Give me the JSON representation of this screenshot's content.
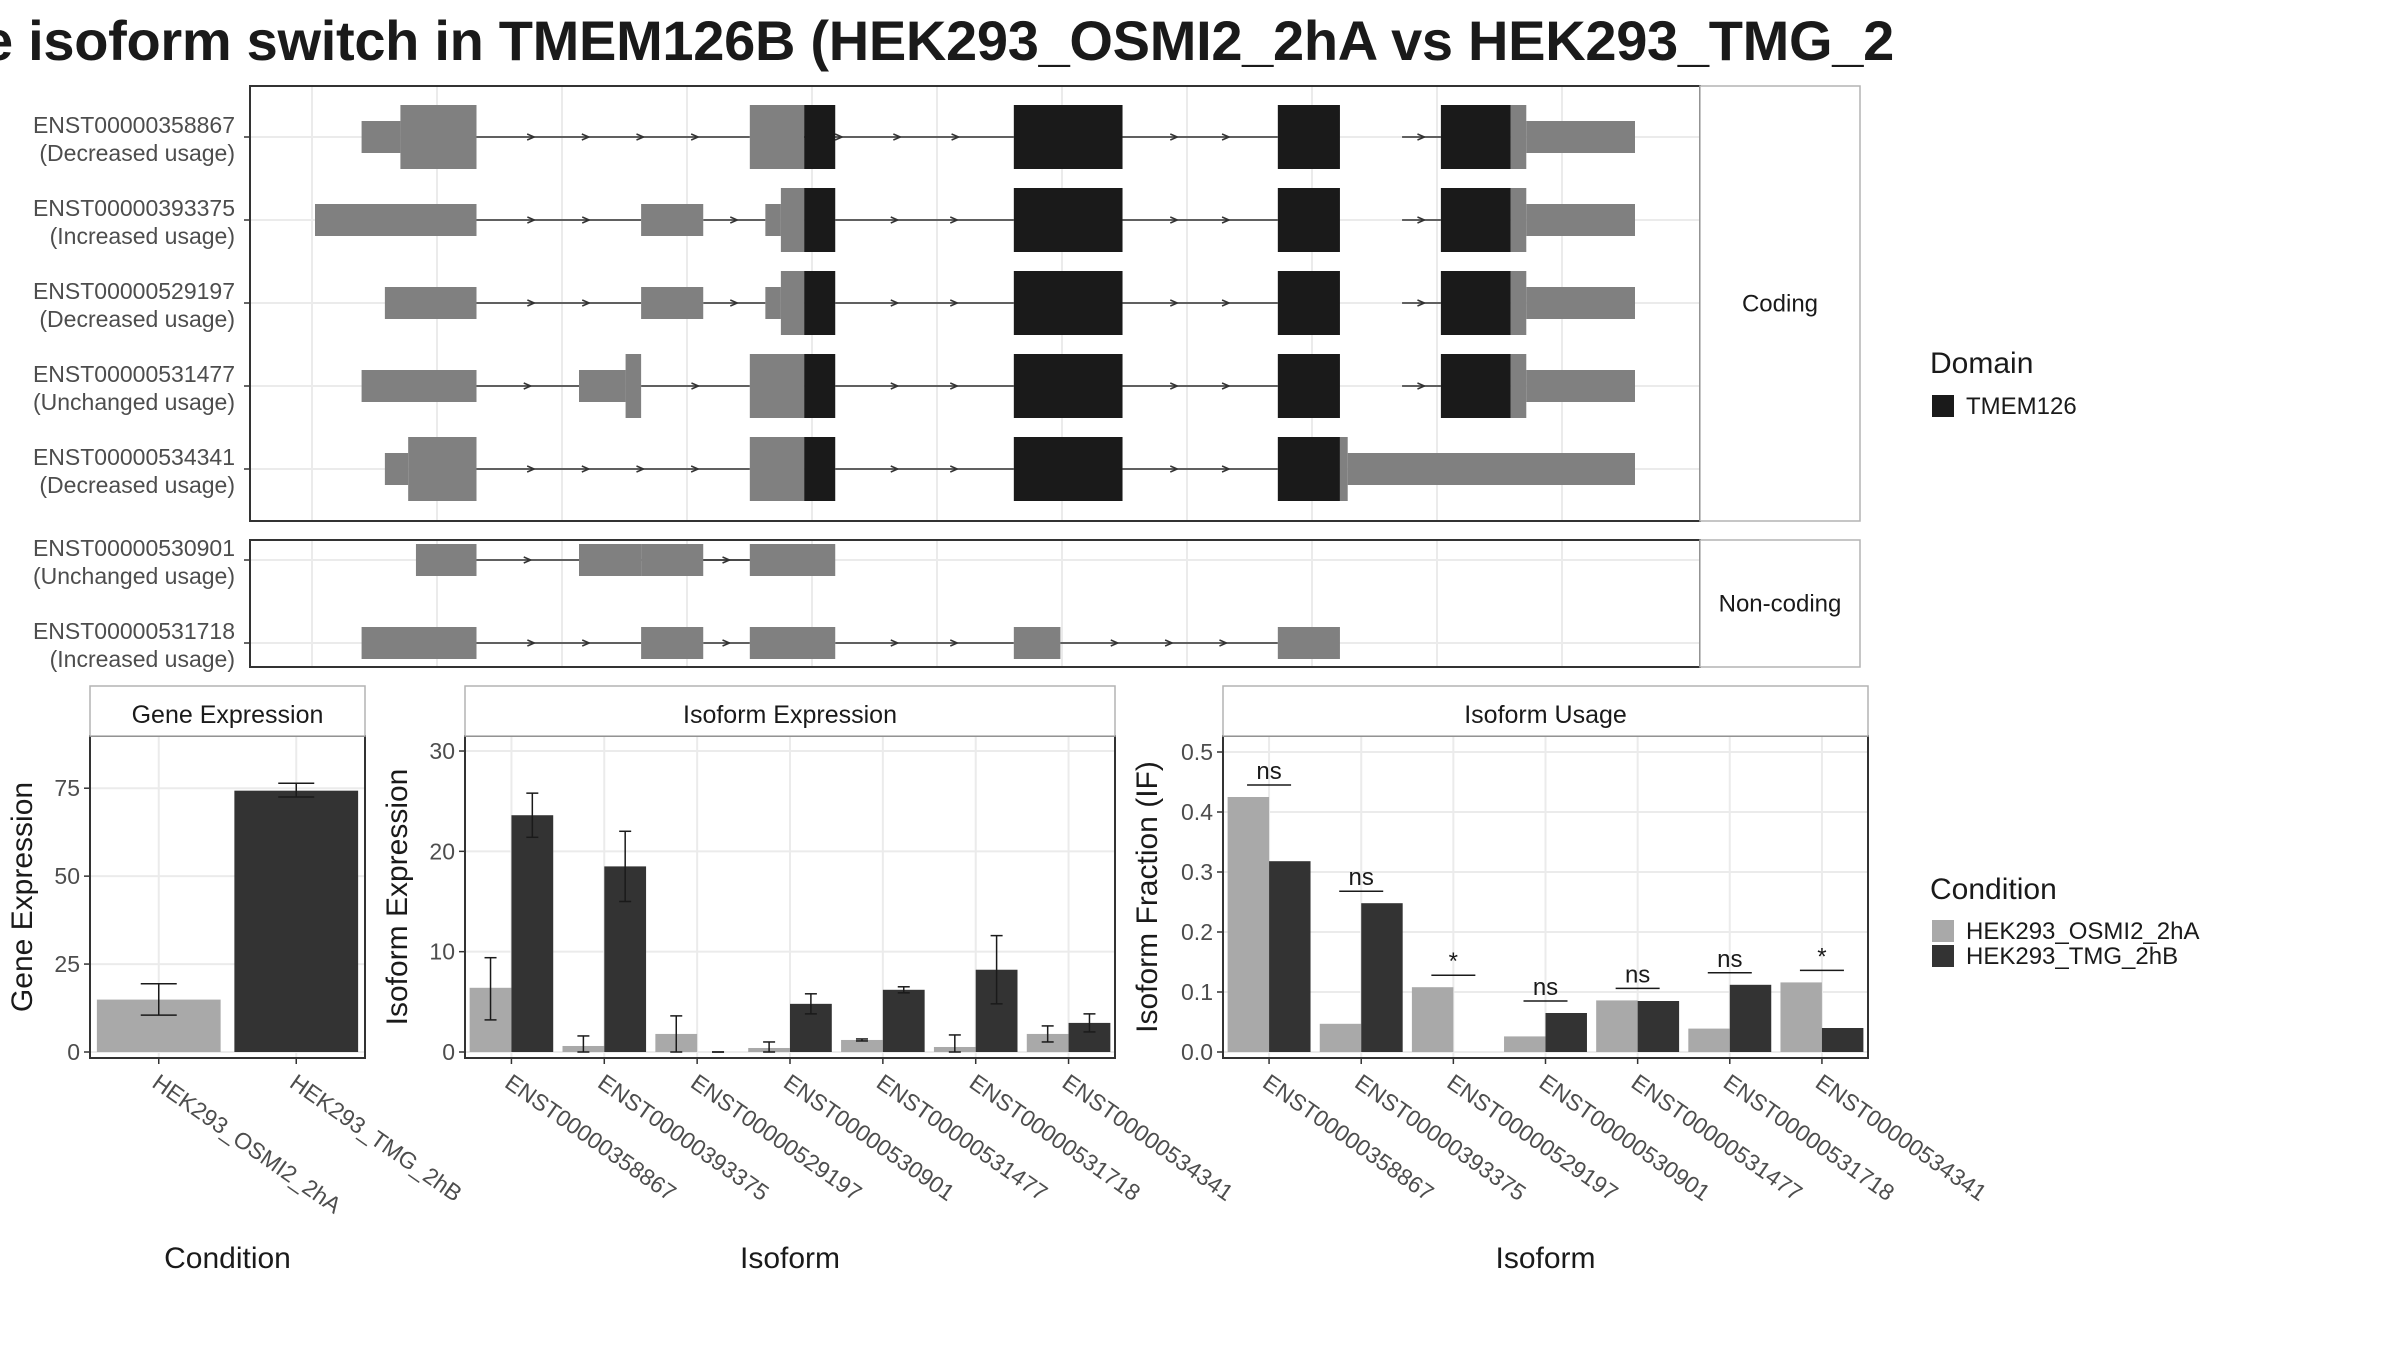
{
  "page": {
    "title": "e isoform switch in TMEM126B (HEK293_OSMI2_2hA vs HEK293_TMG_2"
  },
  "colors": {
    "utr": "#808080",
    "cds": "#1a1a1a",
    "cond_a": "#a9a9a9",
    "cond_b": "#333333",
    "panel_border": "#333333",
    "strip_bg": "#ffffff",
    "grid": "#ebebeb"
  },
  "structure": {
    "coding_label": "Coding",
    "noncoding_label": "Non-coding",
    "coding": [
      {
        "id": "ENST00000358867",
        "usage": "(Decreased usage)",
        "introns": [
          [
            1.04,
            2.8
          ],
          [
            3.0,
            4.5
          ],
          [
            5.2,
            6.2
          ],
          [
            7.0,
            7.25
          ]
        ],
        "blocks": [
          {
            "s": 0.3,
            "e": 0.55,
            "t": "utr",
            "h": "mid"
          },
          {
            "s": 0.55,
            "e": 1.04,
            "t": "utr",
            "h": "big"
          },
          {
            "s": 2.8,
            "e": 3.15,
            "t": "utr",
            "h": "big"
          },
          {
            "s": 3.15,
            "e": 3.35,
            "t": "cds"
          },
          {
            "s": 4.5,
            "e": 5.2,
            "t": "cds"
          },
          {
            "s": 6.2,
            "e": 6.6,
            "t": "cds"
          },
          {
            "s": 7.25,
            "e": 7.7,
            "t": "cds"
          },
          {
            "s": 7.7,
            "e": 7.8,
            "t": "utr",
            "h": "big"
          },
          {
            "s": 7.8,
            "e": 8.5,
            "t": "utr",
            "h": "mid"
          }
        ]
      },
      {
        "id": "ENST00000393375",
        "usage": "(Increased usage)",
        "introns": [
          [
            1.04,
            2.1
          ],
          [
            2.5,
            2.9
          ],
          [
            3.35,
            4.5
          ],
          [
            5.2,
            6.2
          ],
          [
            7.0,
            7.25
          ]
        ],
        "blocks": [
          {
            "s": 0.0,
            "e": 1.04,
            "t": "utr",
            "h": "mid"
          },
          {
            "s": 2.1,
            "e": 2.5,
            "t": "utr",
            "h": "mid"
          },
          {
            "s": 2.9,
            "e": 3.0,
            "t": "utr",
            "h": "mid"
          },
          {
            "s": 3.0,
            "e": 3.15,
            "t": "utr",
            "h": "big"
          },
          {
            "s": 3.15,
            "e": 3.35,
            "t": "cds"
          },
          {
            "s": 4.5,
            "e": 5.2,
            "t": "cds"
          },
          {
            "s": 6.2,
            "e": 6.6,
            "t": "cds"
          },
          {
            "s": 7.25,
            "e": 7.7,
            "t": "cds"
          },
          {
            "s": 7.7,
            "e": 7.8,
            "t": "utr",
            "h": "big"
          },
          {
            "s": 7.8,
            "e": 8.5,
            "t": "utr",
            "h": "mid"
          }
        ]
      },
      {
        "id": "ENST00000529197",
        "usage": "(Decreased usage)",
        "introns": [
          [
            1.04,
            2.1
          ],
          [
            2.5,
            2.9
          ],
          [
            3.35,
            4.5
          ],
          [
            5.2,
            6.2
          ],
          [
            7.0,
            7.25
          ]
        ],
        "blocks": [
          {
            "s": 0.45,
            "e": 1.04,
            "t": "utr",
            "h": "mid"
          },
          {
            "s": 2.1,
            "e": 2.5,
            "t": "utr",
            "h": "mid"
          },
          {
            "s": 2.9,
            "e": 3.0,
            "t": "utr",
            "h": "mid"
          },
          {
            "s": 3.0,
            "e": 3.15,
            "t": "utr",
            "h": "big"
          },
          {
            "s": 3.15,
            "e": 3.35,
            "t": "cds"
          },
          {
            "s": 4.5,
            "e": 5.2,
            "t": "cds"
          },
          {
            "s": 6.2,
            "e": 6.6,
            "t": "cds"
          },
          {
            "s": 7.25,
            "e": 7.7,
            "t": "cds"
          },
          {
            "s": 7.7,
            "e": 7.8,
            "t": "utr",
            "h": "big"
          },
          {
            "s": 7.8,
            "e": 8.5,
            "t": "utr",
            "h": "mid"
          }
        ]
      },
      {
        "id": "ENST00000531477",
        "usage": "(Unchanged usage)",
        "introns": [
          [
            1.04,
            1.7
          ],
          [
            2.1,
            2.8
          ],
          [
            3.35,
            4.5
          ],
          [
            5.2,
            6.2
          ],
          [
            7.0,
            7.25
          ]
        ],
        "blocks": [
          {
            "s": 0.3,
            "e": 1.04,
            "t": "utr",
            "h": "mid"
          },
          {
            "s": 1.7,
            "e": 2.0,
            "t": "utr",
            "h": "mid"
          },
          {
            "s": 2.0,
            "e": 2.1,
            "t": "utr",
            "h": "big"
          },
          {
            "s": 2.8,
            "e": 3.15,
            "t": "utr",
            "h": "big"
          },
          {
            "s": 3.15,
            "e": 3.35,
            "t": "cds"
          },
          {
            "s": 4.5,
            "e": 5.2,
            "t": "cds"
          },
          {
            "s": 6.2,
            "e": 6.6,
            "t": "cds"
          },
          {
            "s": 7.25,
            "e": 7.7,
            "t": "cds"
          },
          {
            "s": 7.7,
            "e": 7.8,
            "t": "utr",
            "h": "big"
          },
          {
            "s": 7.8,
            "e": 8.5,
            "t": "utr",
            "h": "mid"
          }
        ]
      },
      {
        "id": "ENST00000534341",
        "usage": "(Decreased usage)",
        "introns": [
          [
            1.04,
            2.8
          ],
          [
            3.35,
            4.5
          ],
          [
            5.2,
            6.2
          ]
        ],
        "blocks": [
          {
            "s": 0.45,
            "e": 0.6,
            "t": "utr",
            "h": "mid"
          },
          {
            "s": 0.6,
            "e": 1.04,
            "t": "utr",
            "h": "big"
          },
          {
            "s": 2.8,
            "e": 3.15,
            "t": "utr",
            "h": "big"
          },
          {
            "s": 3.15,
            "e": 3.35,
            "t": "cds"
          },
          {
            "s": 4.5,
            "e": 5.2,
            "t": "cds"
          },
          {
            "s": 6.2,
            "e": 6.6,
            "t": "cds"
          },
          {
            "s": 6.6,
            "e": 6.65,
            "t": "utr",
            "h": "big"
          },
          {
            "s": 6.65,
            "e": 8.5,
            "t": "utr",
            "h": "mid"
          }
        ]
      }
    ],
    "noncoding": [
      {
        "id": "ENST00000530901",
        "usage": "(Unchanged usage)",
        "introns": [
          [
            1.04,
            1.7
          ],
          [
            2.1,
            2.8
          ],
          [
            2.5,
            2.8
          ]
        ],
        "blocks": [
          {
            "s": 0.65,
            "e": 1.04,
            "t": "utr",
            "h": "mid"
          },
          {
            "s": 1.7,
            "e": 2.1,
            "t": "utr",
            "h": "mid"
          },
          {
            "s": 2.1,
            "e": 2.5,
            "t": "utr",
            "h": "mid"
          },
          {
            "s": 2.8,
            "e": 3.35,
            "t": "utr",
            "h": "mid"
          }
        ]
      },
      {
        "id": "ENST00000531718",
        "usage": "(Increased usage)",
        "introns": [
          [
            1.04,
            2.1
          ],
          [
            2.5,
            2.8
          ],
          [
            3.35,
            4.5
          ],
          [
            4.8,
            6.2
          ]
        ],
        "blocks": [
          {
            "s": 0.3,
            "e": 1.04,
            "t": "utr",
            "h": "mid"
          },
          {
            "s": 2.1,
            "e": 2.5,
            "t": "utr",
            "h": "mid"
          },
          {
            "s": 2.8,
            "e": 3.35,
            "t": "utr",
            "h": "mid"
          },
          {
            "s": 4.5,
            "e": 4.8,
            "t": "utr",
            "h": "mid"
          },
          {
            "s": 6.2,
            "e": 6.6,
            "t": "utr",
            "h": "mid"
          }
        ]
      }
    ]
  },
  "legends": {
    "domain_title": "Domain",
    "domain_items": [
      {
        "label": "TMEM126",
        "color": "#1a1a1a"
      }
    ],
    "condition_title": "Condition",
    "condition_items": [
      {
        "label": "HEK293_OSMI2_2hA",
        "color": "#a9a9a9"
      },
      {
        "label": "HEK293_TMG_2hB",
        "color": "#333333"
      }
    ]
  },
  "chart_data": [
    {
      "type": "bar",
      "title": "Gene Expression",
      "xlabel": "Condition",
      "ylabel": "Gene Expression",
      "ylim": [
        0,
        87
      ],
      "yticks": [
        0,
        25,
        50,
        75
      ],
      "categories": [
        "HEK293_OSMI2_2hA",
        "HEK293_TMG_2hB"
      ],
      "values": [
        14.9,
        74.3
      ],
      "errors": [
        [
          10.5,
          19.4
        ],
        [
          72.5,
          76.4
        ]
      ]
    },
    {
      "type": "bar",
      "title": "Isoform Expression",
      "xlabel": "Isoform",
      "ylabel": "Isoform Expression",
      "ylim": [
        0,
        30.5
      ],
      "yticks": [
        0,
        10,
        20,
        30
      ],
      "categories": [
        "ENST00000358867",
        "ENST00000393375",
        "ENST00000529197",
        "ENST00000530901",
        "ENST00000531477",
        "ENST00000531718",
        "ENST00000534341"
      ],
      "series": [
        {
          "name": "HEK293_OSMI2_2hA",
          "values": [
            6.4,
            0.6,
            1.8,
            0.4,
            1.2,
            0.5,
            1.8
          ],
          "errors": [
            [
              3.2,
              9.4
            ],
            [
              0.0,
              1.6
            ],
            [
              0.0,
              3.6
            ],
            [
              0.0,
              1.0
            ],
            [
              1.1,
              1.3
            ],
            [
              0.0,
              1.7
            ],
            [
              1.0,
              2.6
            ]
          ]
        },
        {
          "name": "HEK293_TMG_2hB",
          "values": [
            23.6,
            18.5,
            0.0,
            4.8,
            6.2,
            8.2,
            2.9
          ],
          "errors": [
            [
              21.4,
              25.8
            ],
            [
              15.0,
              22.0
            ],
            [
              0.0,
              0.0
            ],
            [
              3.8,
              5.8
            ],
            [
              5.9,
              6.5
            ],
            [
              4.8,
              11.6
            ],
            [
              2.0,
              3.8
            ]
          ]
        }
      ]
    },
    {
      "type": "bar",
      "title": "Isoform Usage",
      "xlabel": "Isoform",
      "ylabel": "Isoform Fraction (IF)",
      "ylim": [
        0,
        0.51
      ],
      "yticks": [
        "0.0",
        "0.1",
        "0.2",
        "0.3",
        "0.4",
        "0.5"
      ],
      "categories": [
        "ENST00000358867",
        "ENST00000393375",
        "ENST00000529197",
        "ENST00000530901",
        "ENST00000531477",
        "ENST00000531718",
        "ENST00000534341"
      ],
      "series": [
        {
          "name": "HEK293_OSMI2_2hA",
          "values": [
            0.425,
            0.047,
            0.108,
            0.026,
            0.086,
            0.039,
            0.116
          ]
        },
        {
          "name": "HEK293_TMG_2hB",
          "values": [
            0.318,
            0.248,
            0.0,
            0.065,
            0.085,
            0.112,
            0.04
          ]
        }
      ],
      "significance": [
        "ns",
        "ns",
        "*",
        "ns",
        "ns",
        "ns",
        "*"
      ]
    }
  ]
}
